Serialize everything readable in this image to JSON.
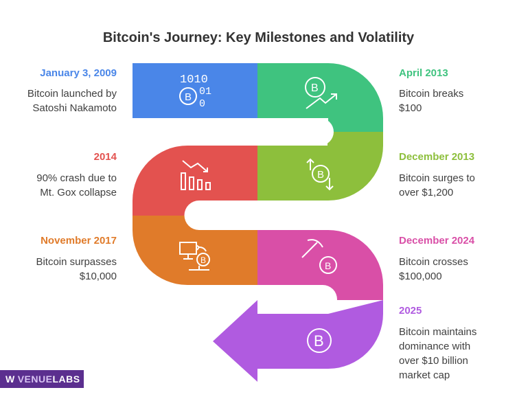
{
  "title": "Bitcoin's Journey: Key Milestones and Volatility",
  "milestones": [
    {
      "date": "January 3, 2009",
      "desc_lines": [
        "Bitcoin launched by",
        "Satoshi Nakamoto"
      ],
      "color": "#4a86e8",
      "icon": "binary-bitcoin-icon"
    },
    {
      "date": "April 2013",
      "desc_lines": [
        "Bitcoin breaks",
        "$100"
      ],
      "color": "#3fc37f",
      "icon": "bitcoin-growth-icon"
    },
    {
      "date": "December 2013",
      "desc_lines": [
        "Bitcoin surges to",
        "over $1,200"
      ],
      "color": "#8dbf3c",
      "icon": "bitcoin-volatility-icon"
    },
    {
      "date": "2014",
      "desc_lines": [
        "90% crash due to",
        "Mt. Gox collapse"
      ],
      "color": "#e3524f",
      "icon": "declining-chart-icon"
    },
    {
      "date": "November 2017",
      "desc_lines": [
        "Bitcoin surpasses",
        "$10,000"
      ],
      "color": "#e07b2a",
      "icon": "computer-bitcoin-icon"
    },
    {
      "date": "December 2024",
      "desc_lines": [
        "Bitcoin crosses",
        "$100,000"
      ],
      "color": "#d94fa7",
      "icon": "bitcoin-mining-icon"
    },
    {
      "date": "2025",
      "desc_lines": [
        "Bitcoin maintains",
        "dominance with",
        "over $10 billion",
        "market cap"
      ],
      "color": "#b05be0",
      "icon": "bitcoin-coin-icon"
    }
  ],
  "icon_text": {
    "binary_top": "1010",
    "binary_mid": "01",
    "binary_bot": "0",
    "btc": "B"
  },
  "brand": {
    "logo": "W",
    "part1": "VENUE",
    "part2": "LABS"
  }
}
